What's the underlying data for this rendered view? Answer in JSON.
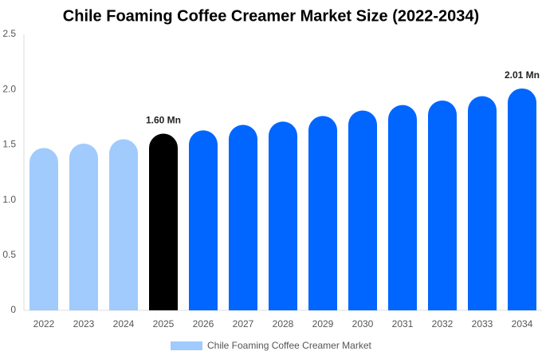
{
  "chart_data": {
    "type": "bar",
    "title": "Chile Foaming Coffee Creamer Market Size (2022-2034)",
    "categories": [
      "2022",
      "2023",
      "2024",
      "2025",
      "2026",
      "2027",
      "2028",
      "2029",
      "2030",
      "2031",
      "2032",
      "2033",
      "2034"
    ],
    "series": [
      {
        "name": "Chile Foaming Coffee Creamer Market",
        "color": "#a0cbfc",
        "values": [
          1.47,
          1.51,
          1.55,
          1.6,
          1.63,
          1.68,
          1.71,
          1.76,
          1.81,
          1.86,
          1.9,
          1.94,
          2.01
        ],
        "value_labels": [
          null,
          null,
          null,
          "1.60 Mn",
          null,
          null,
          null,
          null,
          null,
          null,
          null,
          null,
          "2.01 Mn"
        ],
        "colors": [
          "#a0cbfc",
          "#a0cbfc",
          "#a0cbfc",
          "#000000",
          "#0066ff",
          "#0066ff",
          "#0066ff",
          "#0066ff",
          "#0066ff",
          "#0066ff",
          "#0066ff",
          "#0066ff",
          "#0066ff"
        ]
      }
    ],
    "ylim": [
      0,
      2.5
    ],
    "yticks": [
      0,
      0.5,
      {
        "value": 1.0,
        "label": "1.0"
      },
      1.5,
      {
        "value": 2.0,
        "label": "2.0"
      },
      2.5
    ],
    "grid": false,
    "legend": "bottom"
  }
}
